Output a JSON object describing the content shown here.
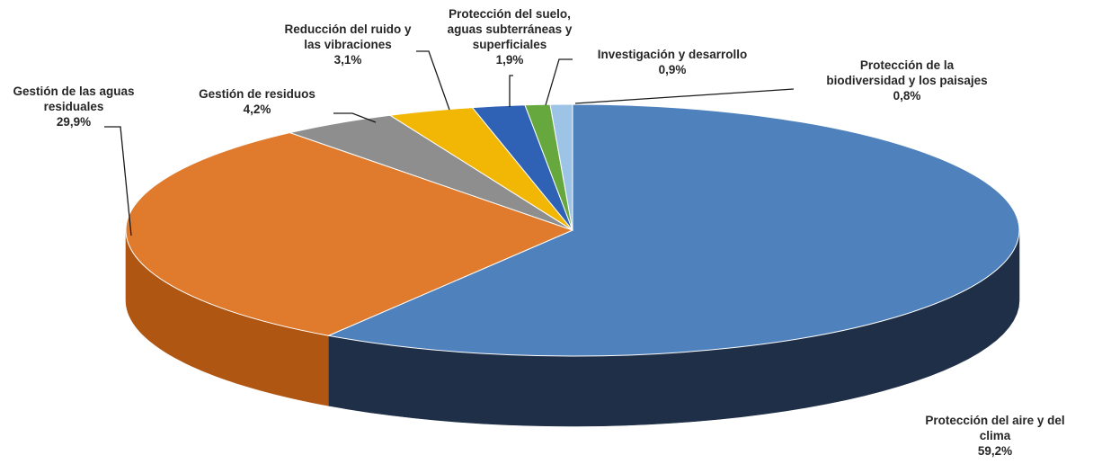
{
  "chart_data": {
    "type": "pie",
    "title": "",
    "slices": [
      {
        "name": "Protección del aire y del clima",
        "name_lines": [
          "Protección del aire y del",
          "clima"
        ],
        "value": 59.2,
        "value_label": "59,2%",
        "color": "#4f81bd",
        "side_color": "#1f2f47"
      },
      {
        "name": "Gestión de las aguas residuales",
        "name_lines": [
          "Gestión de las aguas",
          "residuales"
        ],
        "value": 29.9,
        "value_label": "29,9%",
        "color": "#e07b2e",
        "side_color": "#b05613"
      },
      {
        "name": "Gestión de residuos",
        "name_lines": [
          "Gestión de residuos"
        ],
        "value": 4.2,
        "value_label": "4,2%",
        "color": "#8e8e8e",
        "side_color": "#636363"
      },
      {
        "name": "Reducción del ruido y las vibraciones",
        "name_lines": [
          "Reducción del ruido y",
          "las vibraciones"
        ],
        "value": 3.1,
        "value_label": "3,1%",
        "color": "#f2b705",
        "side_color": "#b88a00"
      },
      {
        "name": "Protección del suelo, aguas subterráneas y superficiales",
        "name_lines": [
          "Protección del suelo,",
          "aguas subterráneas y",
          "superficiales"
        ],
        "value": 1.9,
        "value_label": "1,9%",
        "color": "#2f62b5",
        "side_color": "#1f3f78"
      },
      {
        "name": "Investigación y desarrollo",
        "name_lines": [
          "Investigación y desarrollo"
        ],
        "value": 0.9,
        "value_label": "0,9%",
        "color": "#67a83e",
        "side_color": "#3f7026"
      },
      {
        "name": "Protección de la biodiversidad y los paisajes",
        "name_lines": [
          "Protección de la",
          "biodiversidad y los paisajes"
        ],
        "value": 0.8,
        "value_label": "0,8%",
        "color": "#9dc3e6",
        "side_color": "#6f94b8"
      }
    ]
  }
}
